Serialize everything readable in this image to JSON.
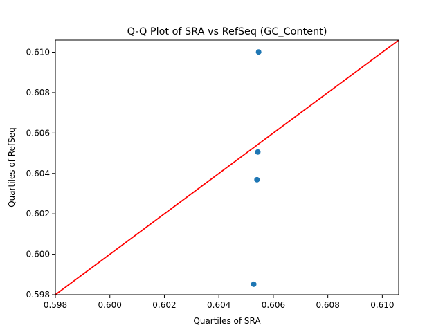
{
  "chart_data": {
    "type": "scatter",
    "title": "Q-Q Plot of SRA vs RefSeq (GC_Content)",
    "xlabel": "Quartiles of SRA",
    "ylabel": "Quartiles of RefSeq",
    "xlim": [
      0.598,
      0.6106
    ],
    "ylim": [
      0.598,
      0.6106
    ],
    "grid": false,
    "x_ticks": [
      {
        "value": 0.598,
        "label": "0.598"
      },
      {
        "value": 0.6,
        "label": "0.600"
      },
      {
        "value": 0.602,
        "label": "0.602"
      },
      {
        "value": 0.604,
        "label": "0.604"
      },
      {
        "value": 0.606,
        "label": "0.606"
      },
      {
        "value": 0.608,
        "label": "0.608"
      },
      {
        "value": 0.61,
        "label": "0.610"
      }
    ],
    "y_ticks": [
      {
        "value": 0.598,
        "label": "0.598"
      },
      {
        "value": 0.6,
        "label": "0.600"
      },
      {
        "value": 0.602,
        "label": "0.602"
      },
      {
        "value": 0.604,
        "label": "0.604"
      },
      {
        "value": 0.606,
        "label": "0.606"
      },
      {
        "value": 0.608,
        "label": "0.608"
      },
      {
        "value": 0.61,
        "label": "0.610"
      }
    ],
    "series": [
      {
        "points": [
          {
            "x": 0.60528,
            "y": 0.59852
          },
          {
            "x": 0.6054,
            "y": 0.60369
          },
          {
            "x": 0.60543,
            "y": 0.60506
          },
          {
            "x": 0.60546,
            "y": 0.61001
          }
        ],
        "color": "#1f77b4"
      }
    ],
    "reference_line": {
      "points": [
        [
          0.598,
          0.598
        ],
        [
          0.6106,
          0.6106
        ]
      ],
      "color": "#ff0000"
    }
  }
}
